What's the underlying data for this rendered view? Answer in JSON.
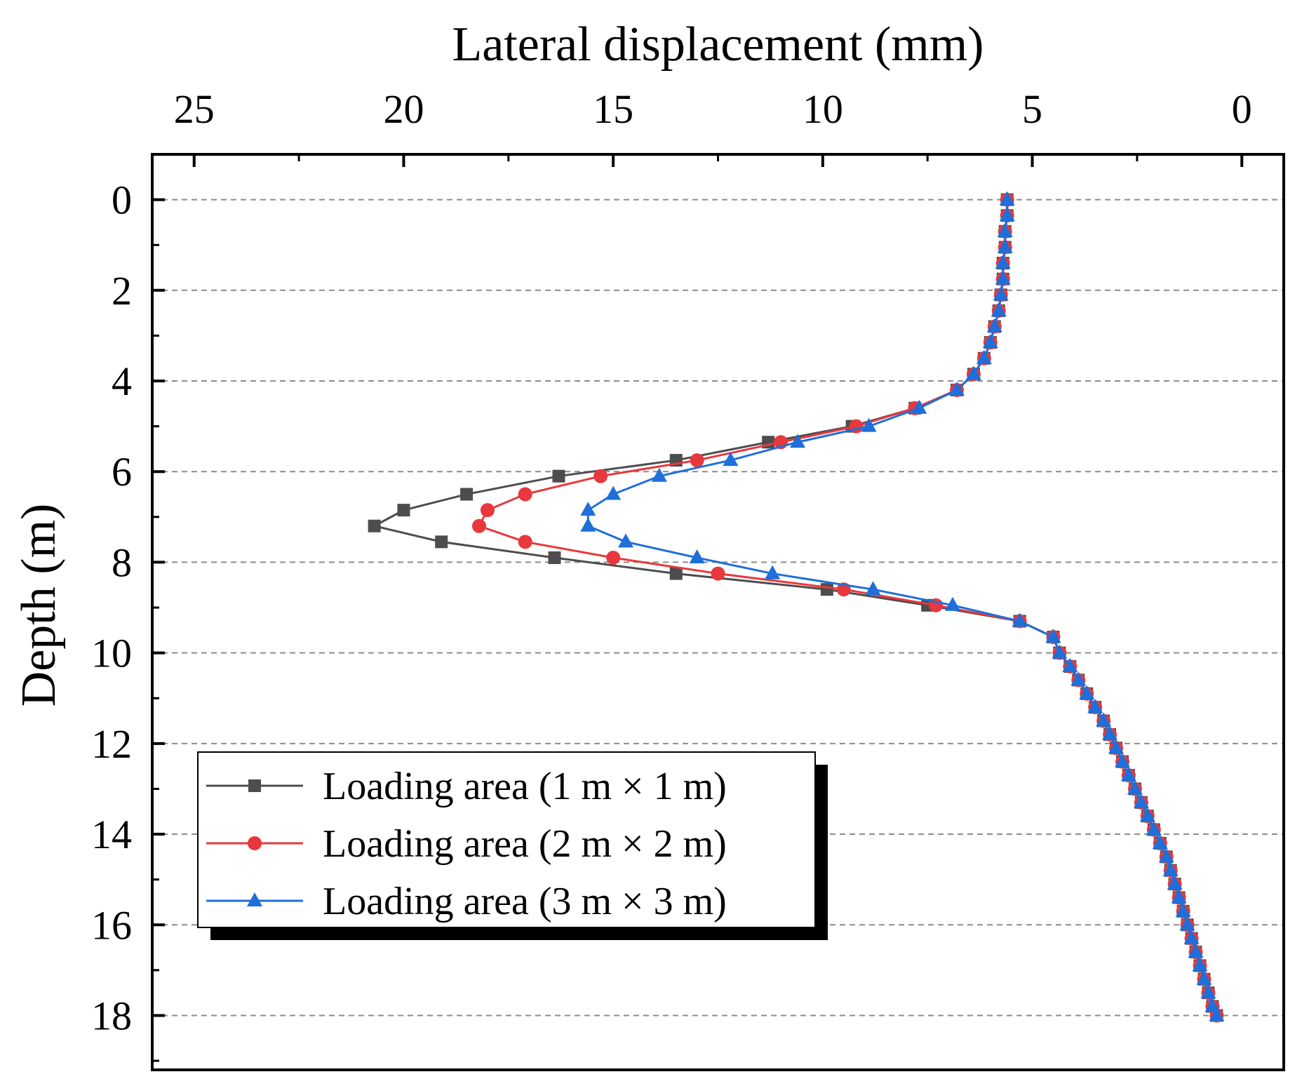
{
  "chart_data": {
    "type": "line",
    "title": "",
    "xlabel": "Lateral displacement (mm)",
    "ylabel": "Depth (m)",
    "x_axis": {
      "position": "top",
      "reversed": true,
      "xlim": [
        26,
        -1
      ],
      "ticks": [
        25,
        20,
        15,
        10,
        5,
        0
      ],
      "tick_labels": [
        "25",
        "20",
        "15",
        "10",
        "5",
        "0"
      ]
    },
    "y_axis": {
      "reversed": true,
      "ylim": [
        -1,
        19.2
      ],
      "ticks": [
        0,
        2,
        4,
        6,
        8,
        10,
        12,
        14,
        16,
        18
      ],
      "tick_labels": [
        "0",
        "2",
        "4",
        "6",
        "8",
        "10",
        "12",
        "14",
        "16",
        "18"
      ]
    },
    "grid": "horizontal dashed at major y ticks",
    "legend": {
      "placement": "bottom-left"
    },
    "depths": [
      0,
      0.35,
      0.7,
      1.05,
      1.4,
      1.75,
      2.1,
      2.45,
      2.8,
      3.15,
      3.5,
      3.85,
      4.2,
      4.6,
      5.0,
      5.35,
      5.75,
      6.1,
      6.5,
      6.85,
      7.2,
      7.55,
      7.9,
      8.25,
      8.6,
      8.95,
      9.3,
      9.65,
      10.0,
      10.3,
      10.6,
      10.9,
      11.2,
      11.5,
      11.8,
      12.1,
      12.4,
      12.7,
      13.0,
      13.3,
      13.6,
      13.9,
      14.2,
      14.5,
      14.8,
      15.1,
      15.4,
      15.7,
      16.0,
      16.3,
      16.6,
      16.9,
      17.2,
      17.5,
      17.8,
      18.0
    ],
    "series": [
      {
        "name": "Loading area (1 m × 1 m)",
        "color": "#4d4d4d",
        "marker": "square",
        "values": [
          5.6,
          5.6,
          5.65,
          5.65,
          5.7,
          5.7,
          5.75,
          5.8,
          5.9,
          6.0,
          6.15,
          6.4,
          6.8,
          7.8,
          9.3,
          11.3,
          13.5,
          16.3,
          18.5,
          20.0,
          20.7,
          19.1,
          16.4,
          13.5,
          9.9,
          7.5,
          5.3,
          4.5,
          4.35,
          4.1,
          3.9,
          3.7,
          3.5,
          3.3,
          3.15,
          3.0,
          2.85,
          2.7,
          2.55,
          2.4,
          2.25,
          2.1,
          1.95,
          1.8,
          1.7,
          1.6,
          1.5,
          1.4,
          1.3,
          1.2,
          1.1,
          1.0,
          0.9,
          0.8,
          0.7,
          0.6
        ]
      },
      {
        "name": "Loading area (2 m × 2 m)",
        "color": "#e8383d",
        "marker": "circle",
        "values": [
          5.6,
          5.6,
          5.65,
          5.65,
          5.7,
          5.7,
          5.75,
          5.8,
          5.9,
          6.0,
          6.15,
          6.4,
          6.8,
          7.8,
          9.2,
          11.0,
          13.0,
          15.3,
          17.1,
          18.0,
          18.2,
          17.1,
          15.0,
          12.5,
          9.5,
          7.3,
          5.3,
          4.5,
          4.35,
          4.1,
          3.9,
          3.7,
          3.5,
          3.3,
          3.15,
          3.0,
          2.85,
          2.7,
          2.55,
          2.4,
          2.25,
          2.1,
          1.95,
          1.8,
          1.7,
          1.6,
          1.5,
          1.4,
          1.3,
          1.2,
          1.1,
          1.0,
          0.9,
          0.8,
          0.7,
          0.6
        ]
      },
      {
        "name": "Loading area (3 m × 3 m)",
        "color": "#1e6fd9",
        "marker": "triangle",
        "values": [
          5.6,
          5.6,
          5.65,
          5.65,
          5.7,
          5.7,
          5.75,
          5.8,
          5.9,
          6.0,
          6.15,
          6.4,
          6.8,
          7.7,
          8.9,
          10.6,
          12.2,
          13.9,
          15.0,
          15.6,
          15.6,
          14.7,
          13.0,
          11.2,
          8.8,
          6.9,
          5.3,
          4.5,
          4.35,
          4.1,
          3.9,
          3.7,
          3.5,
          3.3,
          3.15,
          3.0,
          2.85,
          2.7,
          2.55,
          2.4,
          2.25,
          2.1,
          1.95,
          1.8,
          1.7,
          1.6,
          1.5,
          1.4,
          1.3,
          1.2,
          1.1,
          1.0,
          0.9,
          0.8,
          0.7,
          0.6
        ]
      }
    ]
  }
}
